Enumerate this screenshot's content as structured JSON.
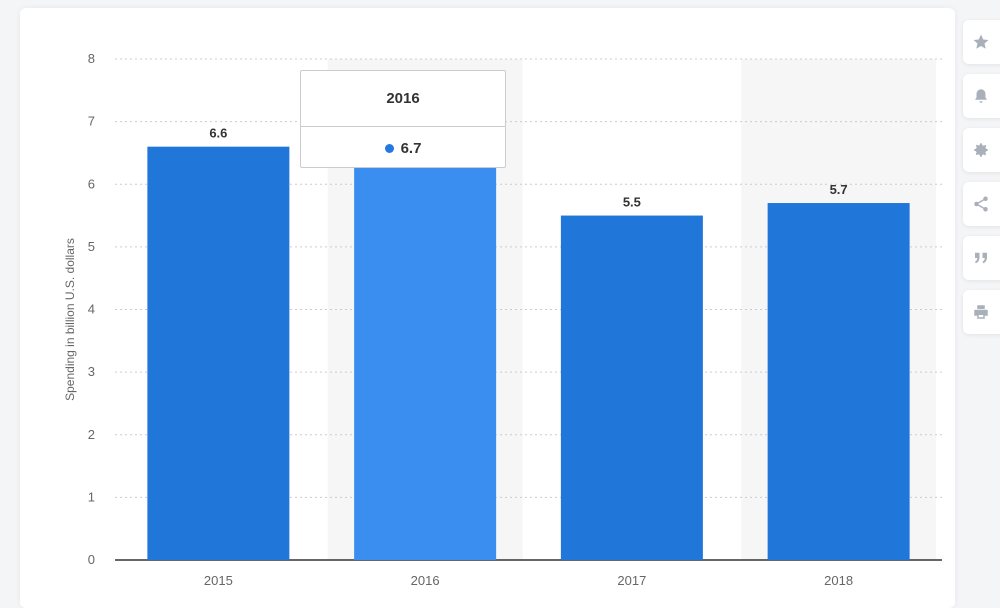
{
  "chart_data": {
    "type": "bar",
    "categories": [
      "2015",
      "2016",
      "2017",
      "2018"
    ],
    "values": [
      6.6,
      6.7,
      5.5,
      5.7
    ],
    "ylabel": "Spending in billion U.S. dollars",
    "ylim": [
      0,
      8
    ],
    "yticks": [
      0,
      1,
      2,
      3,
      4,
      5,
      6,
      7,
      8
    ],
    "grid": true,
    "highlighted_index": 1,
    "colors": {
      "bar": "#2176d9",
      "bar_highlight": "#3a8ef0",
      "hover_band": "#f6f6f7"
    }
  },
  "tooltip": {
    "title": "2016",
    "value": "6.7"
  },
  "sidebar": {
    "buttons": [
      {
        "icon": "star-icon"
      },
      {
        "icon": "bell-icon"
      },
      {
        "icon": "gear-icon"
      },
      {
        "icon": "share-icon"
      },
      {
        "icon": "quote-icon"
      },
      {
        "icon": "print-icon"
      }
    ]
  }
}
